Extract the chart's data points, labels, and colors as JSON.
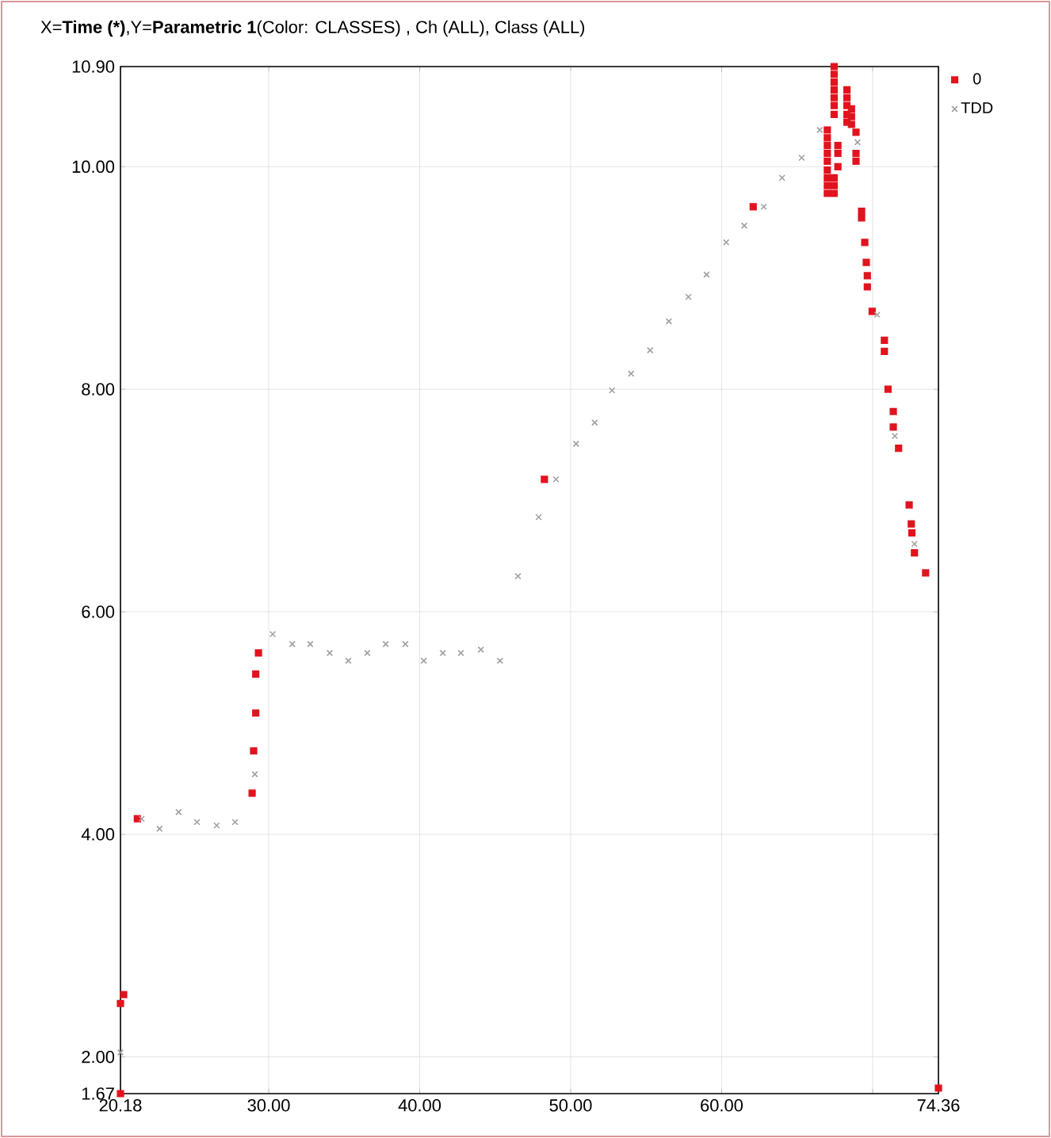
{
  "chart_data": {
    "type": "scatter",
    "title": "X=**Time (*)**,Y=**Parametric 1**(Color: CLASSES) , Ch (ALL), Class (ALL)",
    "xlim": [
      20.18,
      74.36
    ],
    "ylim": [
      1.67,
      10.9
    ],
    "xticks": [
      {
        "value": 20.18,
        "label": "20.18"
      },
      {
        "value": 30,
        "label": "30.00"
      },
      {
        "value": 40,
        "label": "40.00"
      },
      {
        "value": 50,
        "label": "50.00"
      },
      {
        "value": 60,
        "label": "60.00"
      },
      {
        "value": 70,
        "label": null
      },
      {
        "value": 74.36,
        "label": "74.36"
      }
    ],
    "yticks": [
      {
        "value": 1.67,
        "label": "1.67"
      },
      {
        "value": 2,
        "label": "2.00"
      },
      {
        "value": 4,
        "label": "4.00"
      },
      {
        "value": 6,
        "label": "6.00"
      },
      {
        "value": 8,
        "label": "8.00"
      },
      {
        "value": 10,
        "label": "10.00"
      },
      {
        "value": 10.9,
        "label": "10.90"
      }
    ],
    "grid": true,
    "legend": "top right",
    "series": [
      {
        "name": "0",
        "color": "#e0141e",
        "marker": "square",
        "x": [
          20.18,
          20.18,
          20.39,
          21.3,
          28.9,
          29.0,
          29.14,
          29.14,
          29.32,
          48.26,
          62.09,
          67.0,
          67.0,
          67.0,
          67.0,
          67.0,
          67.0,
          67.0,
          67.0,
          67.0,
          67.45,
          67.45,
          67.45,
          67.45,
          67.45,
          67.45,
          67.45,
          67.45,
          67.45,
          67.45,
          67.7,
          67.7,
          67.7,
          68.3,
          68.3,
          68.3,
          68.3,
          68.3,
          68.6,
          68.6,
          68.6,
          68.9,
          68.9,
          68.9,
          69.27,
          69.27,
          69.48,
          69.58,
          69.65,
          69.65,
          69.97,
          70.78,
          70.78,
          71.02,
          71.37,
          71.37,
          71.72,
          72.42,
          72.56,
          72.6,
          72.77,
          73.51,
          74.36
        ],
        "values": [
          1.67,
          2.48,
          2.56,
          4.14,
          4.37,
          4.75,
          5.09,
          5.44,
          5.63,
          7.19,
          9.64,
          10.33,
          10.26,
          10.19,
          10.12,
          10.05,
          9.97,
          9.9,
          9.83,
          9.76,
          10.9,
          10.83,
          10.76,
          10.69,
          10.62,
          10.55,
          10.47,
          9.9,
          9.83,
          9.76,
          10.19,
          10.12,
          10.0,
          10.69,
          10.62,
          10.55,
          10.47,
          10.4,
          10.52,
          10.45,
          10.38,
          10.31,
          10.12,
          10.05,
          9.6,
          9.54,
          9.32,
          9.14,
          9.02,
          8.92,
          8.7,
          8.44,
          8.34,
          8.0,
          7.8,
          7.66,
          7.47,
          6.96,
          6.79,
          6.71,
          6.53,
          6.35,
          1.72
        ]
      },
      {
        "name": "TDD",
        "color": "#a0a0a0",
        "marker": "cross",
        "x": [
          20.18,
          21.58,
          22.77,
          24.03,
          25.25,
          26.55,
          27.77,
          29.08,
          30.26,
          31.56,
          32.75,
          34.04,
          35.27,
          36.53,
          37.75,
          39.05,
          40.27,
          41.53,
          42.73,
          44.05,
          45.32,
          46.51,
          47.88,
          49.03,
          50.36,
          51.59,
          52.74,
          54.0,
          55.26,
          56.5,
          57.8,
          59.0,
          60.3,
          61.5,
          62.79,
          64.0,
          65.3,
          66.5,
          69.0,
          70.3,
          71.47,
          72.77
        ],
        "values": [
          2.04,
          4.14,
          4.05,
          4.2,
          4.11,
          4.08,
          4.11,
          4.54,
          5.8,
          5.71,
          5.71,
          5.63,
          5.56,
          5.63,
          5.71,
          5.71,
          5.56,
          5.63,
          5.63,
          5.66,
          5.56,
          6.32,
          6.85,
          7.19,
          7.51,
          7.7,
          7.99,
          8.14,
          8.35,
          8.61,
          8.83,
          9.03,
          9.32,
          9.47,
          9.64,
          9.9,
          10.08,
          10.33,
          10.22,
          8.67,
          7.58,
          6.61
        ]
      }
    ]
  }
}
